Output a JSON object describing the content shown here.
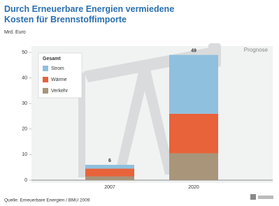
{
  "chart_data": {
    "type": "stacked-bar",
    "title": "Durch Erneuerbare Energien vermiedene",
    "title_line2": "Kosten für Brennstoffimporte",
    "y_label": "Mrd. Euro",
    "annotation": "Prognose",
    "source": "Quelle: Erneuerbare Energien / BMU 2009",
    "legend_title": "Gesamt",
    "categories": [
      "2007",
      "2020"
    ],
    "series": [
      {
        "name": "Verkehr",
        "color": "#a8957a",
        "values": [
          1.5,
          10.5
        ]
      },
      {
        "name": "Wärme",
        "color": "#e8623a",
        "values": [
          3,
          15.5
        ]
      },
      {
        "name": "Strom",
        "color": "#8fc0de",
        "values": [
          1.5,
          23
        ]
      }
    ],
    "totals": [
      6,
      49
    ],
    "ylim": [
      0,
      50
    ],
    "yticks": [
      0,
      10,
      20,
      30,
      40,
      50
    ],
    "grid": false
  }
}
